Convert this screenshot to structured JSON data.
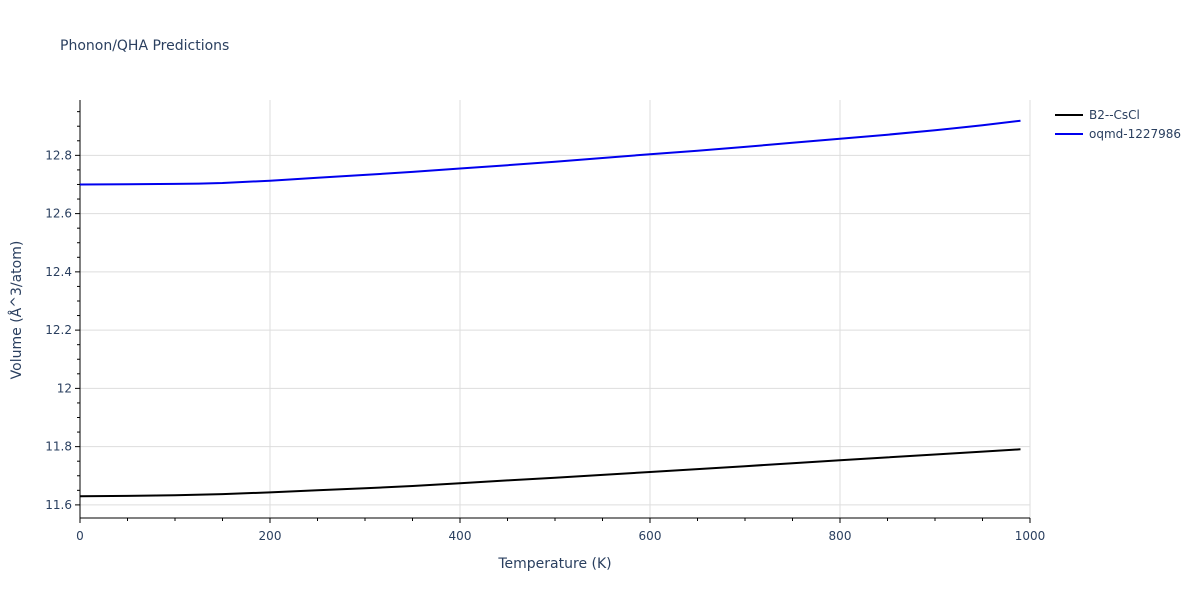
{
  "chart_data": {
    "type": "line",
    "title": "Phonon/QHA Predictions",
    "xlabel": "Temperature (K)",
    "ylabel": "Volume (Å^3/atom)",
    "xlim": [
      0,
      1000
    ],
    "ylim": [
      11.555,
      12.99
    ],
    "xticks": [
      0,
      200,
      400,
      600,
      800,
      1000
    ],
    "xtick_labels": [
      "0",
      "200",
      "400",
      "600",
      "800",
      "1000"
    ],
    "yticks": [
      11.6,
      11.8,
      12.0,
      12.2,
      12.4,
      12.6,
      12.8
    ],
    "ytick_labels": [
      "11.6",
      "11.8",
      "12",
      "12.2",
      "12.4",
      "12.6",
      "12.8"
    ],
    "grid": true,
    "legend_position": "top-right",
    "series": [
      {
        "name": "B2--CsCl",
        "color": "#000000",
        "x": [
          0,
          50,
          100,
          150,
          200,
          250,
          300,
          350,
          400,
          450,
          500,
          550,
          600,
          650,
          700,
          750,
          800,
          850,
          900,
          950,
          990
        ],
        "y": [
          11.63,
          11.631,
          11.633,
          11.637,
          11.643,
          11.65,
          11.657,
          11.665,
          11.674,
          11.684,
          11.693,
          11.703,
          11.713,
          11.723,
          11.733,
          11.743,
          11.753,
          11.763,
          11.773,
          11.783,
          11.791
        ]
      },
      {
        "name": "oqmd-1227986",
        "color": "#0000ee",
        "x": [
          0,
          50,
          100,
          125,
          150,
          200,
          250,
          300,
          350,
          400,
          450,
          500,
          550,
          600,
          650,
          700,
          750,
          800,
          850,
          900,
          950,
          990
        ],
        "y": [
          12.7,
          12.701,
          12.702,
          12.703,
          12.705,
          12.713,
          12.723,
          12.733,
          12.743,
          12.755,
          12.766,
          12.778,
          12.791,
          12.804,
          12.816,
          12.829,
          12.843,
          12.857,
          12.871,
          12.886,
          12.903,
          12.919
        ]
      }
    ]
  }
}
